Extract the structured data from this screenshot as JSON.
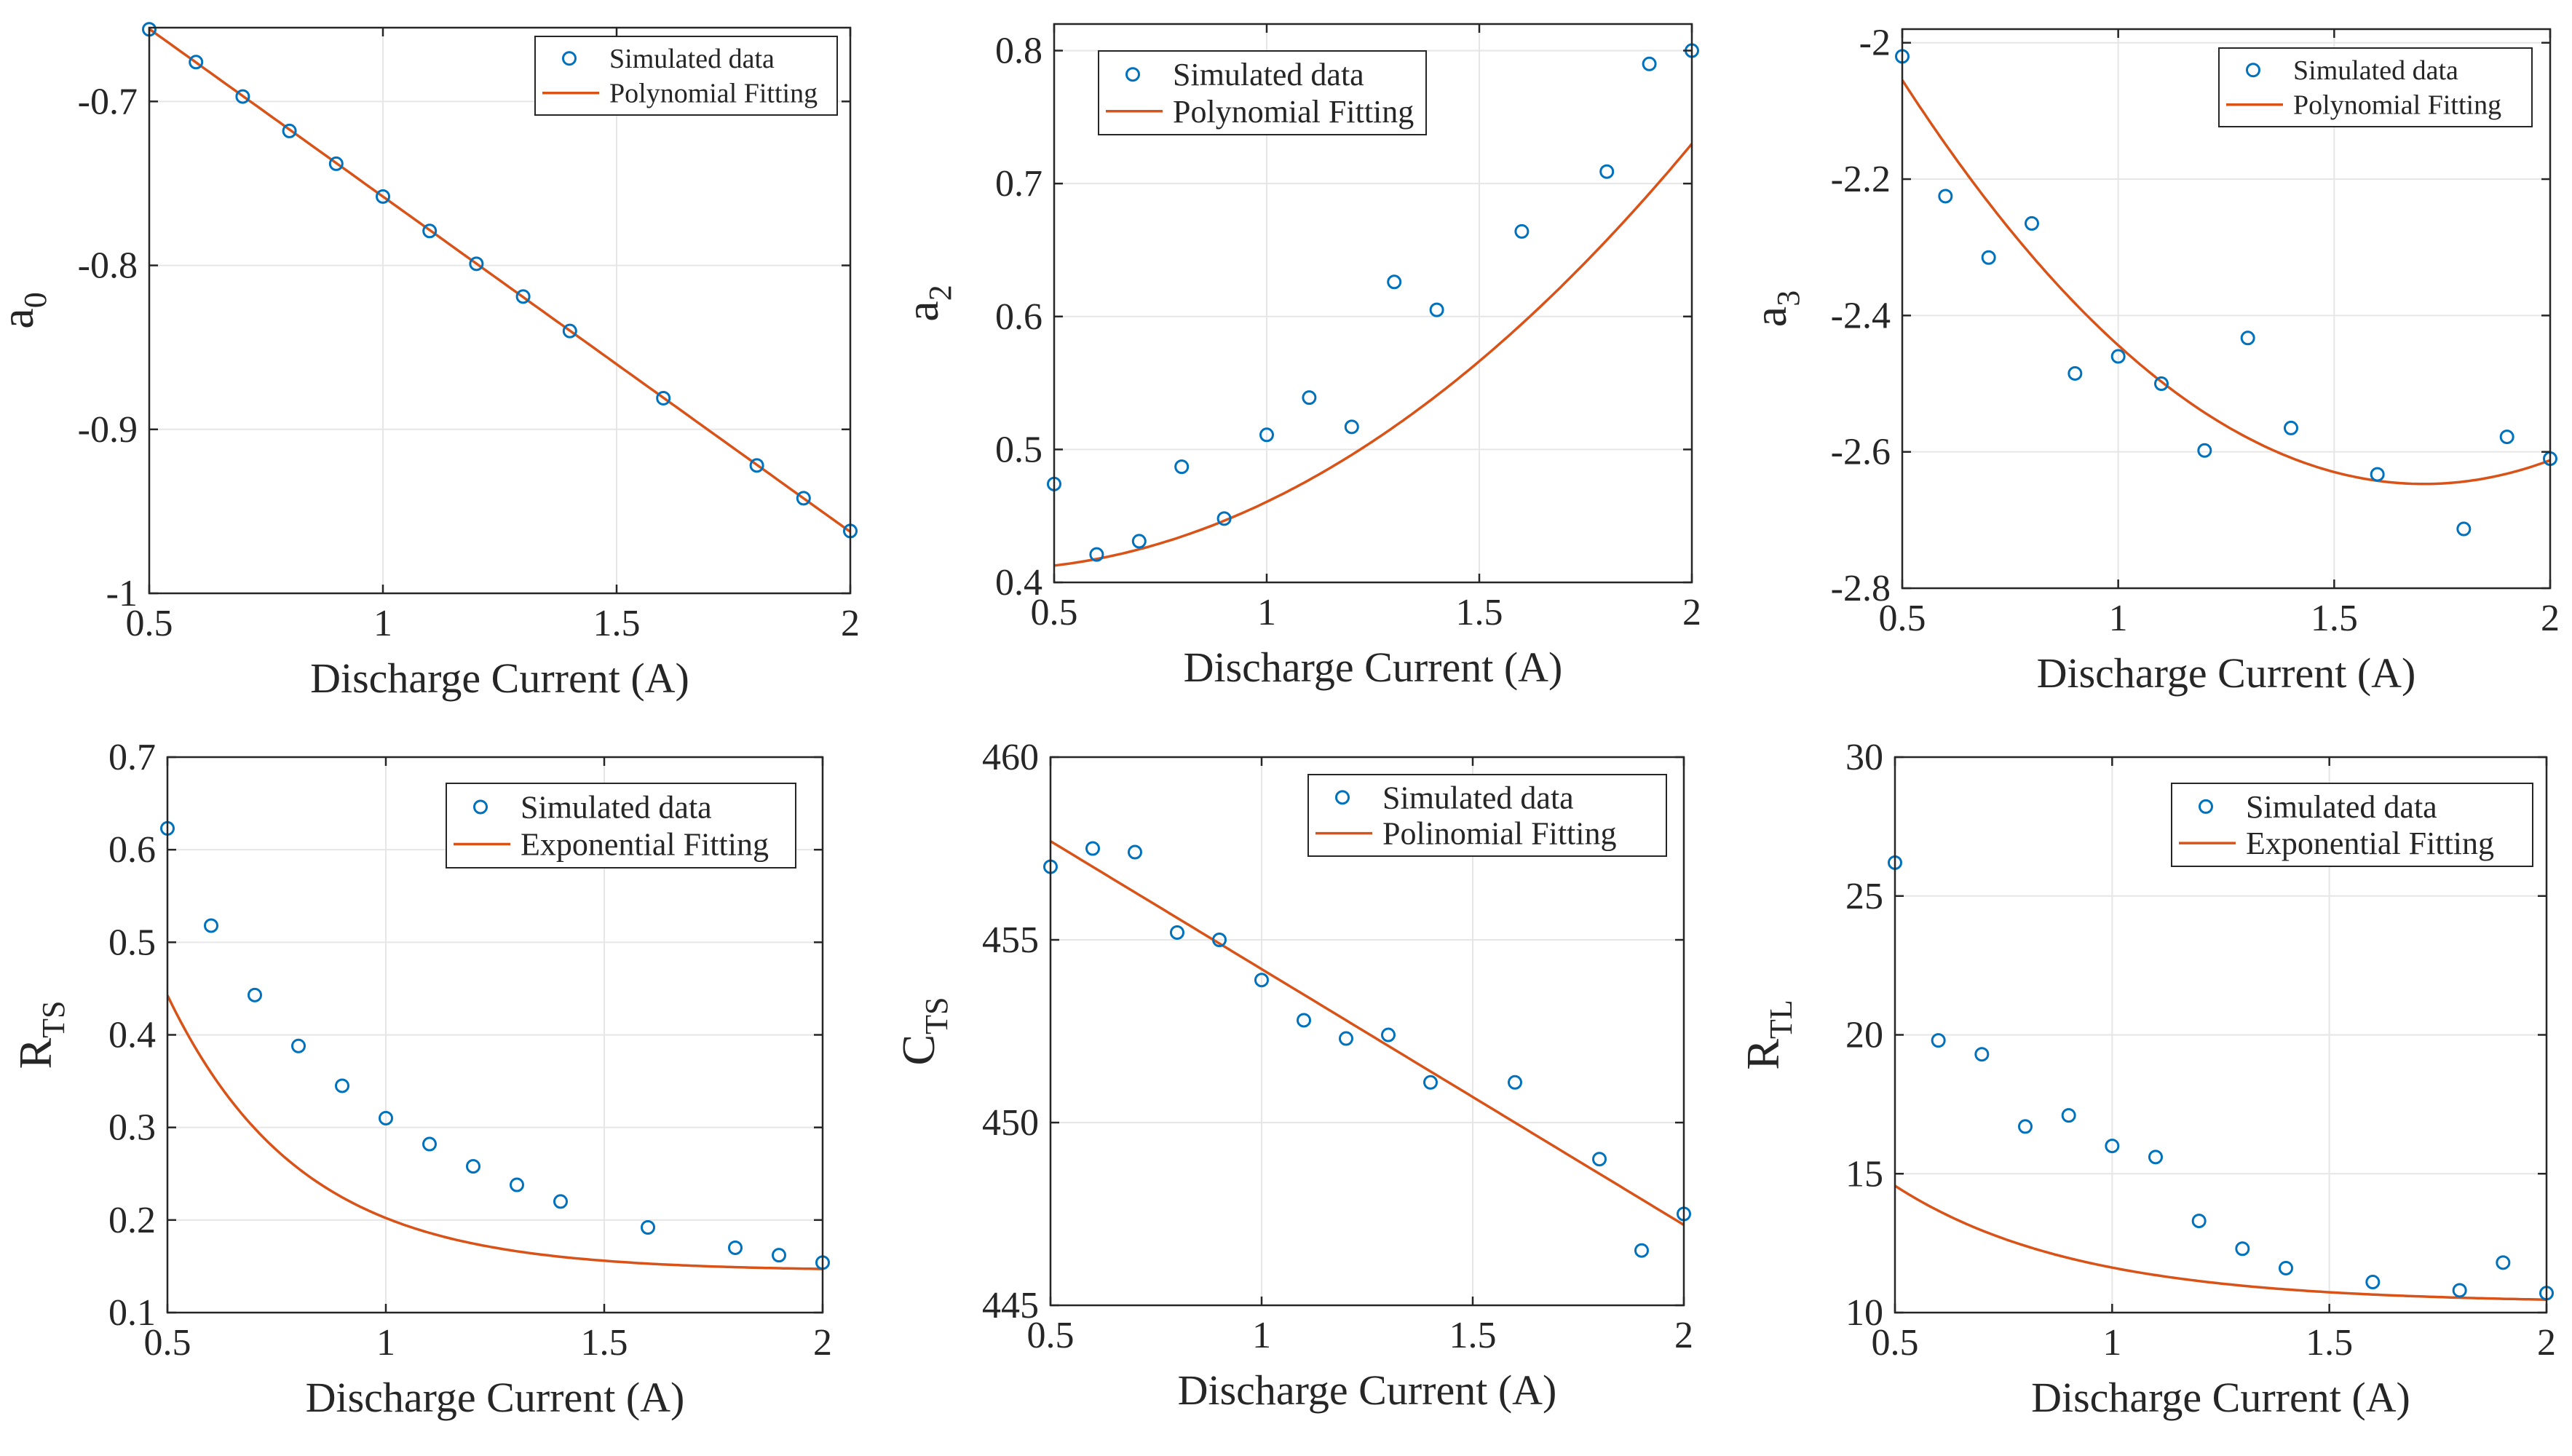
{
  "figure": {
    "colors": {
      "marker": "#0072BD",
      "fit": "#D95319",
      "grid": "#e6e6e6",
      "axis": "#262626"
    },
    "marker_icon": "circle-marker-icon"
  },
  "chart_data": [
    {
      "type": "scatter",
      "ylabel_main": "a",
      "ylabel_sub": "0",
      "xlabel": "Discharge Current (A)",
      "xlim": [
        0.5,
        2
      ],
      "ylim": [
        -1,
        -0.655
      ],
      "xticks": [
        0.5,
        1,
        1.5,
        2
      ],
      "xtick_labels": [
        "0.5",
        "1",
        "1.5",
        "2"
      ],
      "yticks": [
        -1,
        -0.9,
        -0.8,
        -0.7
      ],
      "ytick_labels": [
        "-1",
        "-0.9",
        "-0.8",
        "-0.7"
      ],
      "legend": [
        "Simulated data",
        "Polynomial Fitting"
      ],
      "series": [
        {
          "name": "Simulated data",
          "x": [
            0.5,
            0.6,
            0.7,
            0.8,
            0.9,
            1.0,
            1.1,
            1.2,
            1.3,
            1.4,
            1.6,
            1.8,
            1.9,
            2.0
          ],
          "y": [
            -0.656,
            -0.676,
            -0.697,
            -0.718,
            -0.738,
            -0.758,
            -0.779,
            -0.799,
            -0.819,
            -0.84,
            -0.881,
            -0.922,
            -0.942,
            -0.962
          ]
        },
        {
          "name": "Polynomial Fitting",
          "kind": "poly",
          "coef": [
            -0.5535,
            -0.2045,
            0
          ]
        }
      ]
    },
    {
      "type": "scatter",
      "ylabel_main": "a",
      "ylabel_sub": "2",
      "xlabel": "Discharge Current (A)",
      "xlim": [
        0.5,
        2
      ],
      "ylim": [
        0.4,
        0.82
      ],
      "xticks": [
        0.5,
        1,
        1.5,
        2
      ],
      "xtick_labels": [
        "0.5",
        "1",
        "1.5",
        "2"
      ],
      "yticks": [
        0.4,
        0.5,
        0.6,
        0.7,
        0.8
      ],
      "ytick_labels": [
        "0.4",
        "0.5",
        "0.6",
        "0.7",
        "0.8"
      ],
      "legend": [
        "Simulated data",
        "Polynomial Fitting"
      ],
      "series": [
        {
          "name": "Simulated data",
          "x": [
            0.5,
            0.6,
            0.7,
            0.8,
            0.9,
            1.0,
            1.1,
            1.2,
            1.3,
            1.4,
            1.6,
            1.8,
            1.9,
            2.0
          ],
          "y": [
            0.474,
            0.421,
            0.431,
            0.487,
            0.448,
            0.511,
            0.539,
            0.517,
            0.626,
            0.605,
            0.664,
            0.709,
            0.79,
            0.8
          ]
        },
        {
          "name": "Polynomial Fitting",
          "kind": "poly",
          "coef": [
            0.4225,
            -0.0775,
            0.1156
          ]
        }
      ]
    },
    {
      "type": "scatter",
      "ylabel_main": "a",
      "ylabel_sub": "3",
      "xlabel": "Discharge Current (A)",
      "xlim": [
        0.5,
        2
      ],
      "ylim": [
        -2.8,
        -1.98
      ],
      "xticks": [
        0.5,
        1,
        1.5,
        2
      ],
      "xtick_labels": [
        "0.5",
        "1",
        "1.5",
        "2"
      ],
      "yticks": [
        -2.8,
        -2.6,
        -2.4,
        -2.2,
        -2
      ],
      "ytick_labels": [
        "-2.8",
        "-2.6",
        "-2.4",
        "-2.2",
        "-2"
      ],
      "legend": [
        "Simulated data",
        "Polynomial Fitting"
      ],
      "series": [
        {
          "name": "Simulated data",
          "x": [
            0.5,
            0.6,
            0.7,
            0.8,
            0.9,
            1.0,
            1.1,
            1.2,
            1.3,
            1.4,
            1.6,
            1.8,
            1.9,
            2.0
          ],
          "y": [
            -2.02,
            -2.225,
            -2.315,
            -2.265,
            -2.485,
            -2.46,
            -2.5,
            -2.598,
            -2.433,
            -2.565,
            -2.633,
            -2.713,
            -2.578,
            -2.61
          ]
        },
        {
          "name": "Polynomial Fitting",
          "kind": "poly",
          "coef": [
            -1.4625,
            -1.3875,
            0.4063
          ]
        }
      ]
    },
    {
      "type": "scatter",
      "ylabel_main": "R",
      "ylabel_sub": "TS",
      "xlabel": "Discharge Current (A)",
      "xlim": [
        0.5,
        2
      ],
      "ylim": [
        0.1,
        0.7
      ],
      "xticks": [
        0.5,
        1,
        1.5,
        2
      ],
      "xtick_labels": [
        "0.5",
        "1",
        "1.5",
        "2"
      ],
      "yticks": [
        0.1,
        0.2,
        0.3,
        0.4,
        0.5,
        0.6,
        0.7
      ],
      "ytick_labels": [
        "0.1",
        "0.2",
        "0.3",
        "0.4",
        "0.5",
        "0.6",
        "0.7"
      ],
      "legend": [
        "Simulated data",
        "Exponential Fitting"
      ],
      "series": [
        {
          "name": "Simulated data",
          "x": [
            0.5,
            0.6,
            0.7,
            0.8,
            0.9,
            1.0,
            1.1,
            1.2,
            1.3,
            1.4,
            1.6,
            1.8,
            1.9,
            2.0
          ],
          "y": [
            0.623,
            0.518,
            0.443,
            0.388,
            0.345,
            0.31,
            0.282,
            0.258,
            0.238,
            0.22,
            0.192,
            0.17,
            0.162,
            0.154
          ]
        },
        {
          "name": "Exponential Fitting",
          "kind": "exp",
          "coef": [
            0.145,
            1.55,
            3.3
          ]
        }
      ]
    },
    {
      "type": "scatter",
      "ylabel_main": "C",
      "ylabel_sub": "TS",
      "xlabel": "Discharge Current (A)",
      "xlim": [
        0.5,
        2
      ],
      "ylim": [
        445,
        460
      ],
      "xticks": [
        0.5,
        1,
        1.5,
        2
      ],
      "xtick_labels": [
        "0.5",
        "1",
        "1.5",
        "2"
      ],
      "yticks": [
        445,
        450,
        455,
        460
      ],
      "ytick_labels": [
        "445",
        "450",
        "455",
        "460"
      ],
      "legend": [
        "Simulated data",
        "Polinomial Fitting"
      ],
      "series": [
        {
          "name": "Simulated data",
          "x": [
            0.5,
            0.6,
            0.7,
            0.8,
            0.9,
            1.0,
            1.1,
            1.2,
            1.3,
            1.4,
            1.6,
            1.8,
            1.9,
            2.0
          ],
          "y": [
            457.0,
            457.5,
            457.4,
            455.2,
            455.0,
            453.9,
            452.8,
            452.3,
            452.4,
            451.1,
            451.1,
            449.0,
            446.5,
            447.5
          ]
        },
        {
          "name": "Polinomial Fitting",
          "kind": "poly",
          "coef": [
            461.2,
            -7.0,
            0
          ]
        }
      ]
    },
    {
      "type": "scatter",
      "ylabel_main": "R",
      "ylabel_sub": "TL",
      "xlabel": "Discharge Current (A)",
      "xlim": [
        0.5,
        2
      ],
      "ylim": [
        10,
        30
      ],
      "xticks": [
        0.5,
        1,
        1.5,
        2
      ],
      "xtick_labels": [
        "0.5",
        "1",
        "1.5",
        "2"
      ],
      "yticks": [
        10,
        15,
        20,
        25,
        30
      ],
      "ytick_labels": [
        "10",
        "15",
        "20",
        "25",
        "30"
      ],
      "legend": [
        "Simulated data",
        "Exponential Fitting"
      ],
      "series": [
        {
          "name": "Simulated data",
          "x": [
            0.5,
            0.6,
            0.7,
            0.8,
            0.9,
            1.0,
            1.1,
            1.2,
            1.3,
            1.4,
            1.6,
            1.8,
            1.9,
            2.0
          ],
          "y": [
            26.2,
            19.8,
            19.3,
            16.7,
            17.1,
            16.0,
            15.6,
            13.3,
            12.3,
            11.6,
            11.1,
            10.8,
            11.8,
            10.7
          ]
        },
        {
          "name": "Exponential Fitting",
          "kind": "exp",
          "coef": [
            10.35,
            14.0,
            2.4
          ]
        }
      ]
    }
  ]
}
